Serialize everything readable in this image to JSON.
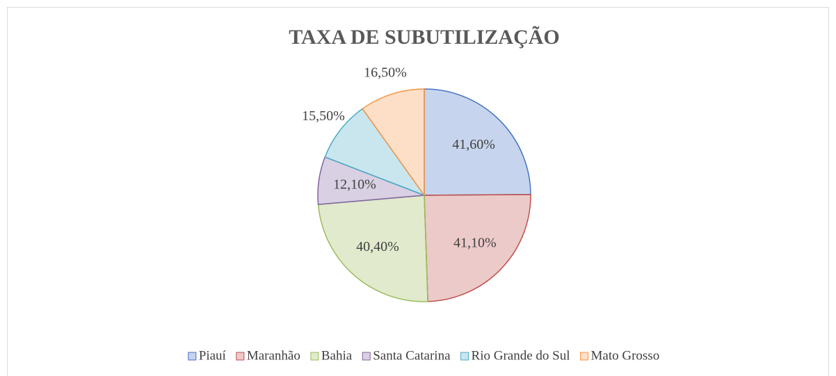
{
  "chart_data": {
    "type": "pie",
    "title": "TAXA DE SUBUTILIZAÇÃO",
    "categories": [
      "Piauí",
      "Maranhão",
      "Bahia",
      "Santa Catarina",
      "Rio Grande do Sul",
      "Mato Grosso"
    ],
    "values": [
      41.6,
      41.1,
      40.4,
      12.1,
      15.5,
      16.5
    ],
    "value_labels": [
      "41,60%",
      "41,10%",
      "40,40%",
      "12,10%",
      "15,50%",
      "16,50%"
    ],
    "colors": [
      "#4472c4",
      "#c0504d",
      "#9bbb59",
      "#8064a2",
      "#4bacc6",
      "#f79646"
    ],
    "legend": "bottom"
  }
}
